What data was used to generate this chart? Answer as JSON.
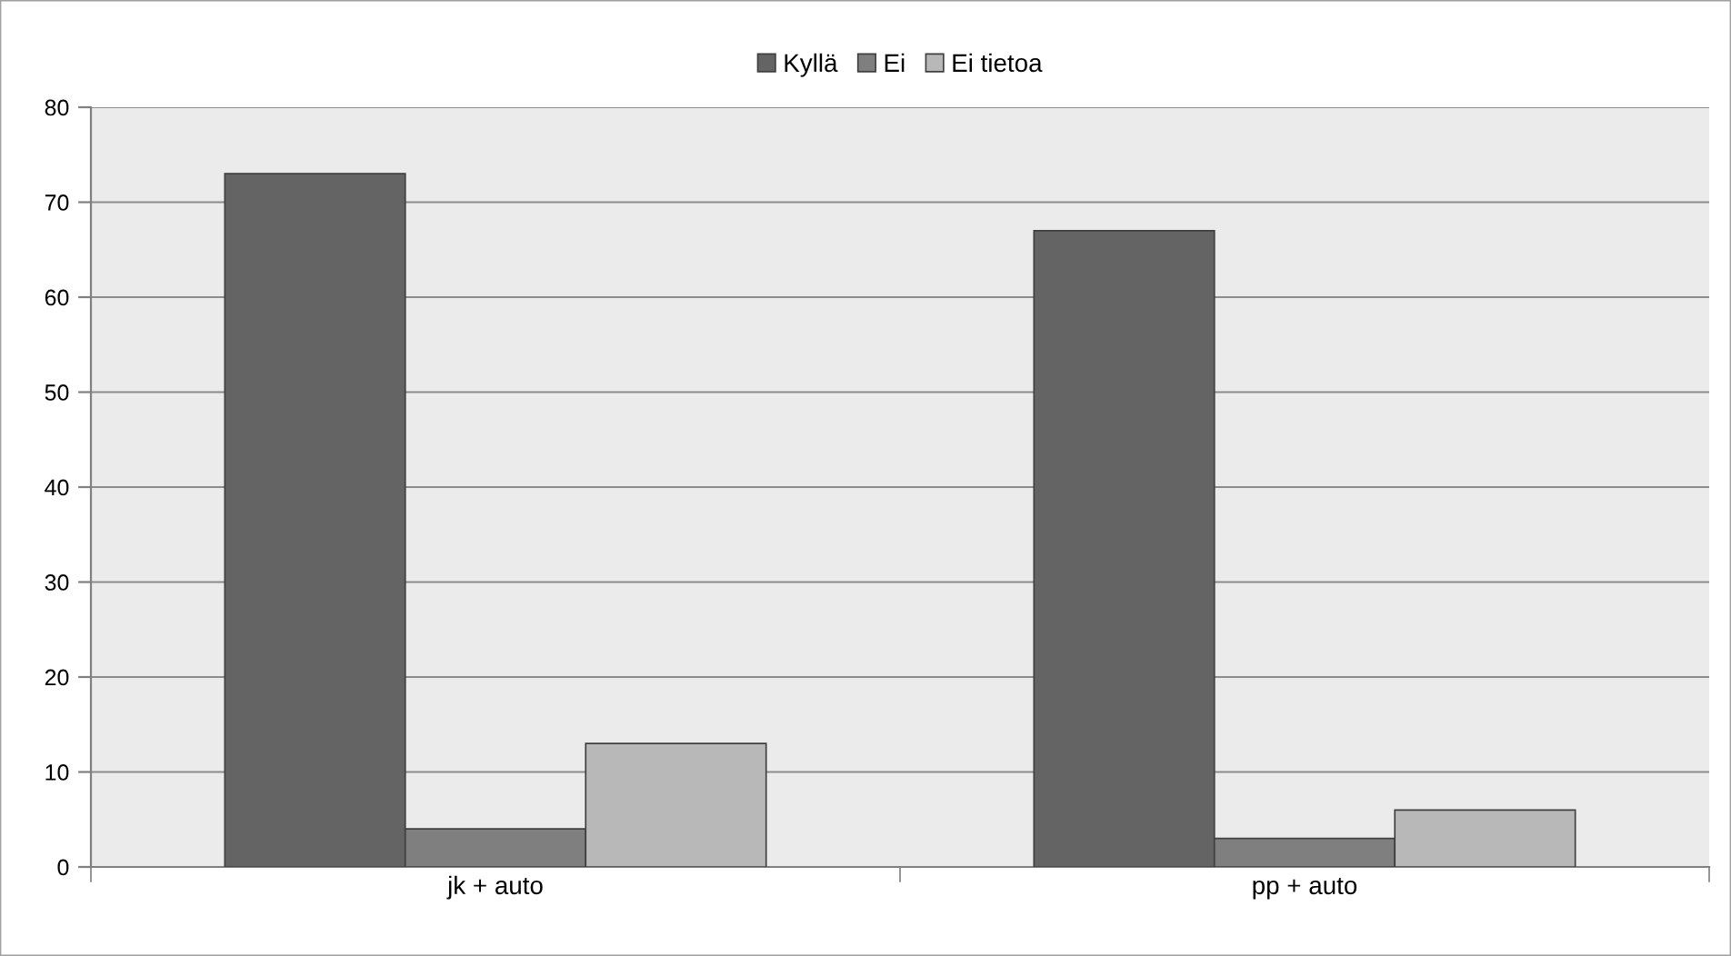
{
  "chart_data": {
    "type": "bar",
    "categories": [
      "jk + auto",
      "pp + auto"
    ],
    "series": [
      {
        "name": "Kyllä",
        "color": "#646464",
        "values": [
          73,
          67
        ]
      },
      {
        "name": "Ei",
        "color": "#7f7f7f",
        "values": [
          4,
          3
        ]
      },
      {
        "name": "Ei tietoa",
        "color": "#b8b8b8",
        "values": [
          13,
          6
        ]
      }
    ],
    "ylim": [
      0,
      80
    ],
    "yticks": [
      0,
      10,
      20,
      30,
      40,
      50,
      60,
      70,
      80
    ],
    "grid": "y",
    "legend": "top"
  }
}
